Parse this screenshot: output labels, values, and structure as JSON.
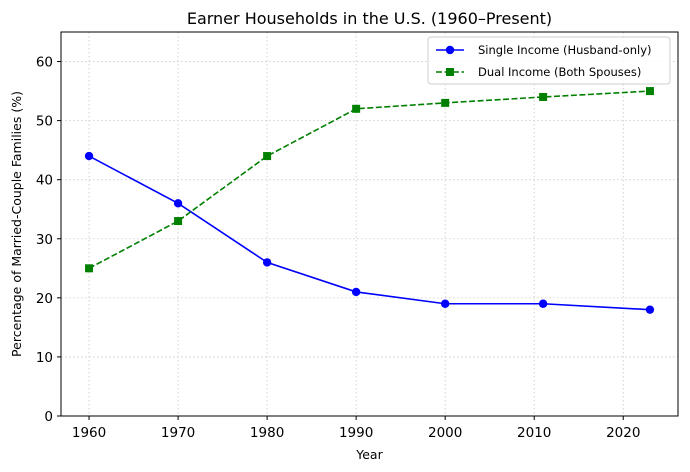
{
  "chart_data": {
    "type": "line",
    "title": "Earner Households in the U.S. (1960–Present)",
    "xlabel": "Year",
    "ylabel": "Percentage of Married-Couple Families (%)",
    "x": [
      1960,
      1970,
      1980,
      1990,
      2000,
      2011,
      2023
    ],
    "xlim": [
      1956.85,
      2026.15
    ],
    "ylim": [
      0,
      65
    ],
    "xticks": [
      1960,
      1970,
      1980,
      1990,
      2000,
      2010,
      2020
    ],
    "yticks": [
      0,
      10,
      20,
      30,
      40,
      50,
      60
    ],
    "grid": true,
    "legend_position": "top-right",
    "series": [
      {
        "name": "Single Income (Husband-only)",
        "values": [
          44,
          36,
          26,
          21,
          19,
          19,
          18
        ],
        "color": "#0000ff",
        "line_style": "solid",
        "marker": "circle"
      },
      {
        "name": "Dual Income (Both Spouses)",
        "values": [
          25,
          33,
          44,
          52,
          53,
          54,
          55
        ],
        "color": "#008000",
        "line_style": "dashed",
        "marker": "square"
      }
    ]
  }
}
